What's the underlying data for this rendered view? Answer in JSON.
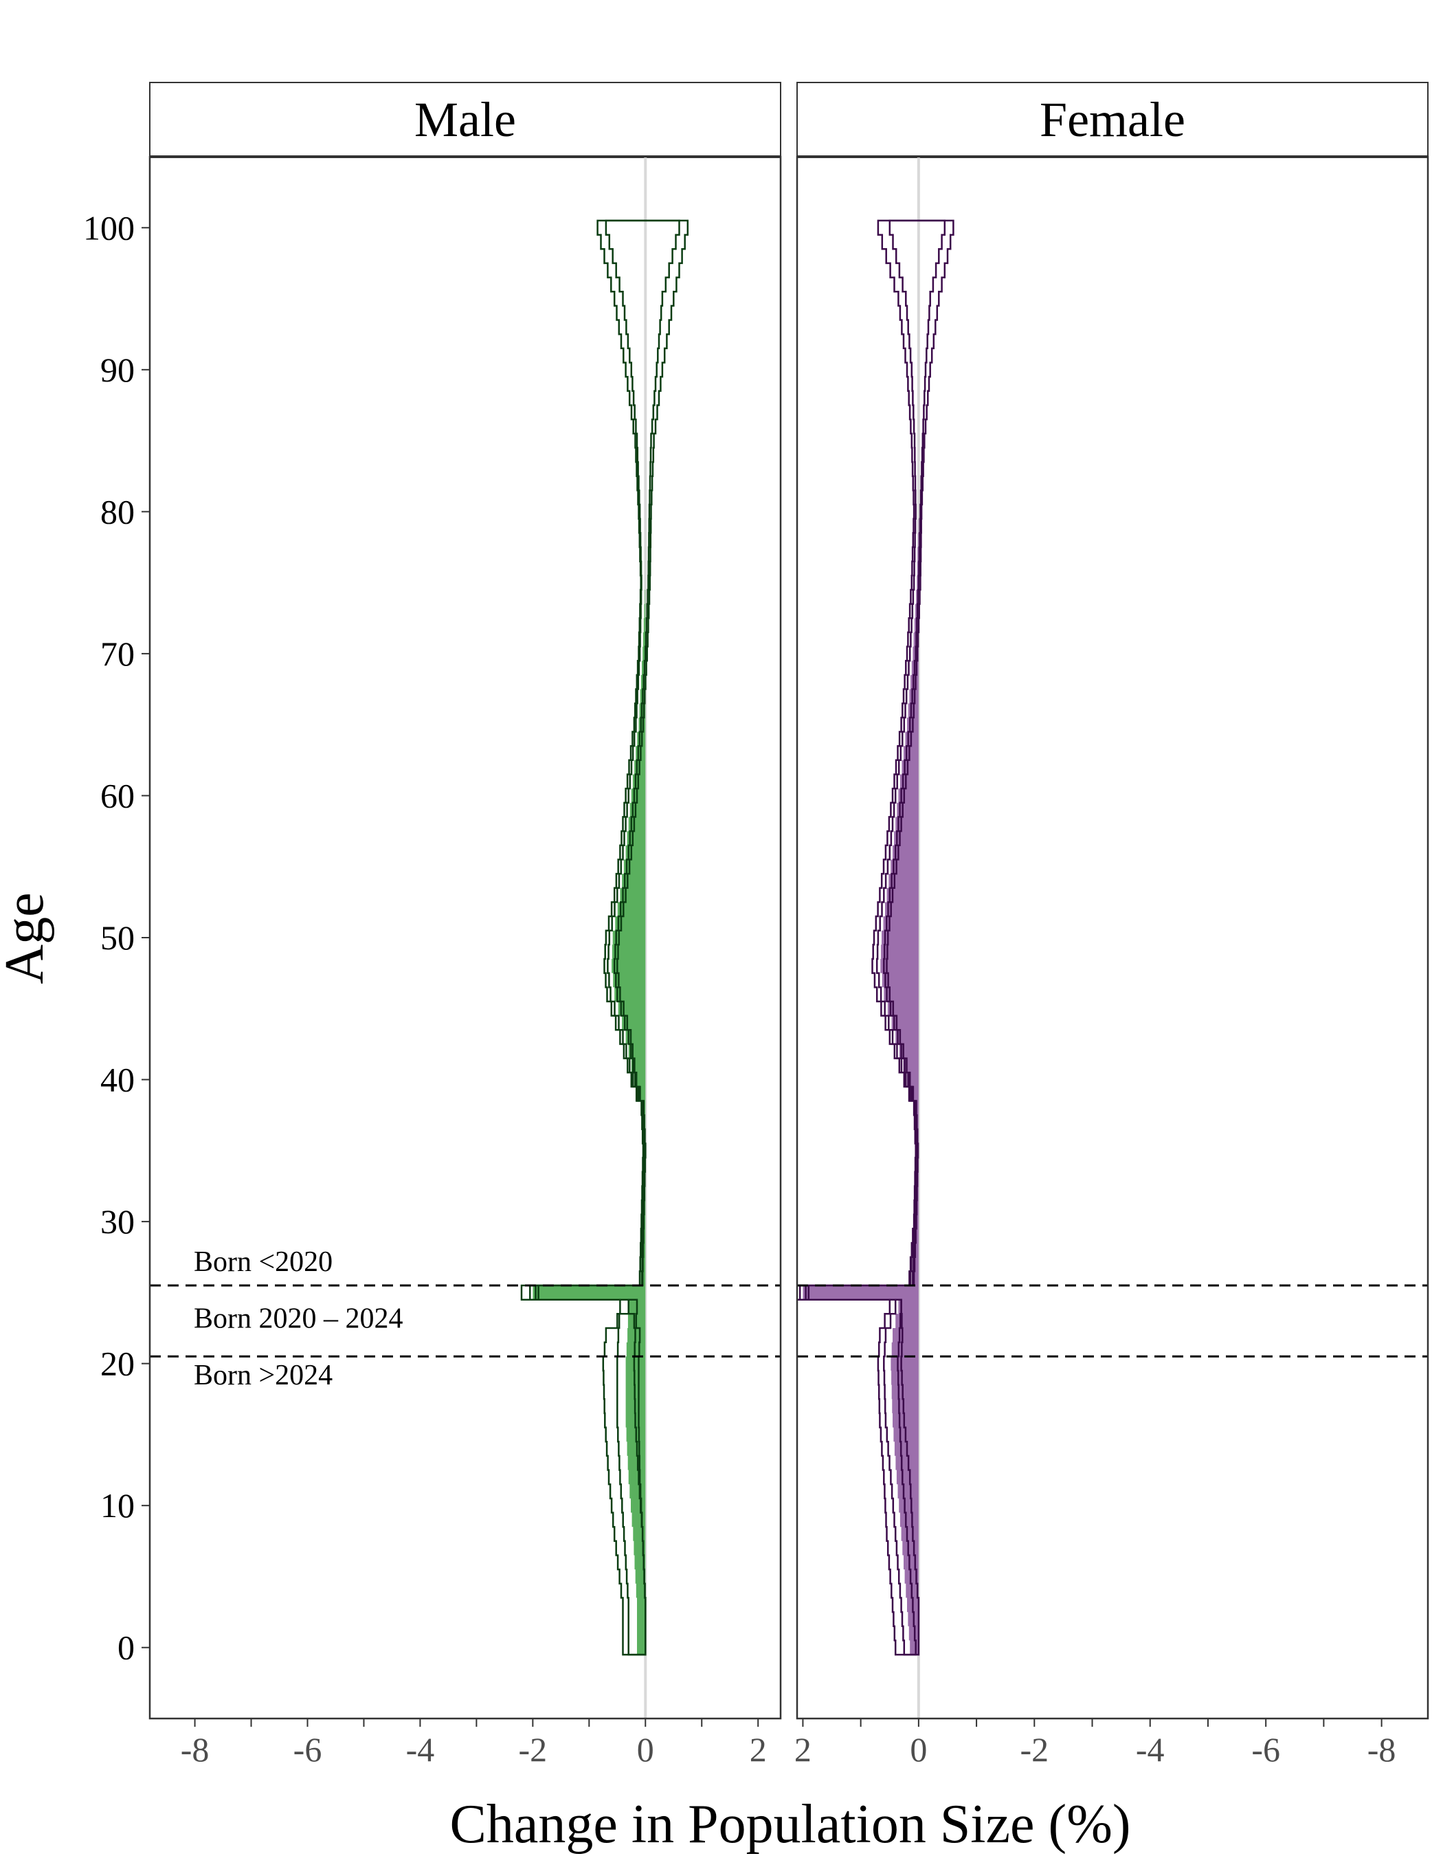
{
  "chart_data": {
    "type": "area",
    "xlabel": "Change in Population Size (%)",
    "ylabel": "Age",
    "ylim": [
      -5,
      105
    ],
    "y_ticks": [
      "0",
      "10",
      "20",
      "30",
      "40",
      "50",
      "60",
      "70",
      "80",
      "90",
      "100"
    ],
    "x_ticks_male": [
      "-8",
      "-6",
      "-4",
      "-2",
      "0",
      "2"
    ],
    "x_ticks_female": [
      "2",
      "0",
      "-2",
      "-4",
      "-6",
      "-8"
    ],
    "grid": false,
    "reference_lines": [
      {
        "age": 25.5,
        "style": "dashed"
      },
      {
        "age": 20.5,
        "style": "dashed"
      }
    ],
    "annotations": [
      "Born <2020",
      "Born 2020 – 2024",
      "Born >2024"
    ],
    "colors": {
      "male_fill": "#5ab05e",
      "male_line": "#0b3d12",
      "female_fill": "#9c6fac",
      "female_line": "#3b0b4a",
      "zero_line": "#d9d9d9"
    },
    "panels": [
      {
        "label": "Male",
        "xlim": [
          -8.8,
          2.4
        ],
        "x_reversed": false,
        "central": [
          [
            0,
            -0.15
          ],
          [
            3,
            -0.15
          ],
          [
            8,
            -0.22
          ],
          [
            12,
            -0.3
          ],
          [
            16,
            -0.35
          ],
          [
            20,
            -0.35
          ],
          [
            22,
            -0.32
          ],
          [
            24,
            -0.3
          ],
          [
            25,
            -2.0
          ],
          [
            26,
            -0.08
          ],
          [
            30,
            -0.05
          ],
          [
            35,
            -0.02
          ],
          [
            38,
            -0.05
          ],
          [
            40,
            -0.2
          ],
          [
            43,
            -0.35
          ],
          [
            46,
            -0.55
          ],
          [
            48,
            -0.6
          ],
          [
            50,
            -0.58
          ],
          [
            53,
            -0.45
          ],
          [
            56,
            -0.35
          ],
          [
            60,
            -0.25
          ],
          [
            65,
            -0.12
          ],
          [
            70,
            -0.05
          ],
          [
            75,
            0
          ],
          [
            80,
            0
          ],
          [
            85,
            0
          ],
          [
            90,
            0
          ],
          [
            95,
            0
          ],
          [
            100,
            0
          ]
        ],
        "inner_lower": [
          [
            0,
            -0.3
          ],
          [
            3,
            -0.3
          ],
          [
            8,
            -0.38
          ],
          [
            12,
            -0.45
          ],
          [
            16,
            -0.5
          ],
          [
            20,
            -0.5
          ],
          [
            22,
            -0.48
          ],
          [
            24,
            -0.45
          ],
          [
            25,
            -2.05
          ],
          [
            26,
            -0.1
          ],
          [
            30,
            -0.06
          ],
          [
            35,
            -0.03
          ],
          [
            38,
            -0.06
          ],
          [
            40,
            -0.22
          ],
          [
            43,
            -0.4
          ],
          [
            46,
            -0.62
          ],
          [
            48,
            -0.67
          ],
          [
            50,
            -0.64
          ],
          [
            53,
            -0.5
          ],
          [
            56,
            -0.4
          ],
          [
            60,
            -0.3
          ],
          [
            65,
            -0.17
          ],
          [
            70,
            -0.1
          ],
          [
            75,
            -0.07
          ],
          [
            80,
            -0.1
          ],
          [
            85,
            -0.15
          ],
          [
            90,
            -0.25
          ],
          [
            95,
            -0.4
          ],
          [
            100,
            -0.7
          ]
        ],
        "inner_upper": [
          [
            0,
            0.0
          ],
          [
            3,
            0.0
          ],
          [
            8,
            -0.05
          ],
          [
            12,
            -0.12
          ],
          [
            16,
            -0.18
          ],
          [
            20,
            -0.2
          ],
          [
            22,
            -0.18
          ],
          [
            24,
            -0.15
          ],
          [
            25,
            -1.95
          ],
          [
            26,
            -0.06
          ],
          [
            30,
            -0.04
          ],
          [
            35,
            -0.01
          ],
          [
            38,
            -0.04
          ],
          [
            40,
            -0.18
          ],
          [
            43,
            -0.3
          ],
          [
            46,
            -0.5
          ],
          [
            48,
            -0.55
          ],
          [
            50,
            -0.52
          ],
          [
            53,
            -0.4
          ],
          [
            56,
            -0.3
          ],
          [
            60,
            -0.2
          ],
          [
            65,
            -0.08
          ],
          [
            70,
            0
          ],
          [
            75,
            0.05
          ],
          [
            80,
            0.07
          ],
          [
            85,
            0.1
          ],
          [
            90,
            0.2
          ],
          [
            95,
            0.3
          ],
          [
            100,
            0.6
          ]
        ],
        "outer_lower": [
          [
            0,
            -0.4
          ],
          [
            3,
            -0.4
          ],
          [
            8,
            -0.55
          ],
          [
            12,
            -0.65
          ],
          [
            16,
            -0.72
          ],
          [
            20,
            -0.75
          ],
          [
            22,
            -0.7
          ],
          [
            24,
            -0.3
          ],
          [
            25,
            -2.2
          ],
          [
            26,
            -0.1
          ],
          [
            30,
            -0.07
          ],
          [
            35,
            -0.04
          ],
          [
            38,
            -0.07
          ],
          [
            40,
            -0.25
          ],
          [
            43,
            -0.45
          ],
          [
            46,
            -0.68
          ],
          [
            48,
            -0.73
          ],
          [
            50,
            -0.7
          ],
          [
            53,
            -0.55
          ],
          [
            56,
            -0.45
          ],
          [
            60,
            -0.35
          ],
          [
            65,
            -0.2
          ],
          [
            70,
            -0.12
          ],
          [
            75,
            -0.08
          ],
          [
            80,
            -0.12
          ],
          [
            85,
            -0.18
          ],
          [
            90,
            -0.35
          ],
          [
            95,
            -0.55
          ],
          [
            100,
            -0.85
          ]
        ],
        "outer_upper": [
          [
            0,
            0.0
          ],
          [
            3,
            0.0
          ],
          [
            8,
            -0.05
          ],
          [
            12,
            -0.1
          ],
          [
            16,
            -0.12
          ],
          [
            20,
            -0.12
          ],
          [
            22,
            -0.1
          ],
          [
            24,
            -0.3
          ],
          [
            25,
            -1.9
          ],
          [
            26,
            -0.05
          ],
          [
            30,
            -0.03
          ],
          [
            35,
            0.0
          ],
          [
            38,
            -0.03
          ],
          [
            40,
            -0.16
          ],
          [
            43,
            -0.26
          ],
          [
            46,
            -0.45
          ],
          [
            48,
            -0.5
          ],
          [
            50,
            -0.47
          ],
          [
            53,
            -0.35
          ],
          [
            56,
            -0.25
          ],
          [
            60,
            -0.15
          ],
          [
            65,
            -0.04
          ],
          [
            70,
            0.03
          ],
          [
            75,
            0.08
          ],
          [
            80,
            0.1
          ],
          [
            85,
            0.15
          ],
          [
            90,
            0.3
          ],
          [
            95,
            0.5
          ],
          [
            100,
            0.75
          ]
        ]
      },
      {
        "label": "Female",
        "xlim": [
          2.1,
          -8.8
        ],
        "x_reversed": true,
        "central": [
          [
            0,
            0.15
          ],
          [
            3,
            0.2
          ],
          [
            8,
            0.3
          ],
          [
            12,
            0.38
          ],
          [
            16,
            0.45
          ],
          [
            20,
            0.48
          ],
          [
            22,
            0.45
          ],
          [
            24,
            0.35
          ],
          [
            25,
            2.0
          ],
          [
            26,
            0.12
          ],
          [
            30,
            0.06
          ],
          [
            35,
            0.03
          ],
          [
            38,
            0.06
          ],
          [
            40,
            0.2
          ],
          [
            43,
            0.4
          ],
          [
            46,
            0.6
          ],
          [
            48,
            0.66
          ],
          [
            50,
            0.64
          ],
          [
            53,
            0.55
          ],
          [
            56,
            0.45
          ],
          [
            60,
            0.35
          ],
          [
            65,
            0.2
          ],
          [
            70,
            0.1
          ],
          [
            75,
            0.03
          ],
          [
            80,
            0
          ],
          [
            85,
            0
          ],
          [
            90,
            0
          ],
          [
            95,
            0
          ],
          [
            100,
            0
          ]
        ],
        "inner_lower": [
          [
            0,
            0.05
          ],
          [
            3,
            0.1
          ],
          [
            8,
            0.2
          ],
          [
            12,
            0.28
          ],
          [
            16,
            0.33
          ],
          [
            20,
            0.36
          ],
          [
            22,
            0.33
          ],
          [
            24,
            0.3
          ],
          [
            25,
            1.95
          ],
          [
            26,
            0.1
          ],
          [
            30,
            0.05
          ],
          [
            35,
            0.02
          ],
          [
            38,
            0.05
          ],
          [
            40,
            0.18
          ],
          [
            43,
            0.36
          ],
          [
            46,
            0.55
          ],
          [
            48,
            0.6
          ],
          [
            50,
            0.58
          ],
          [
            53,
            0.5
          ],
          [
            56,
            0.4
          ],
          [
            60,
            0.3
          ],
          [
            65,
            0.15
          ],
          [
            70,
            0.05
          ],
          [
            75,
            0
          ],
          [
            80,
            -0.03
          ],
          [
            85,
            -0.07
          ],
          [
            90,
            -0.12
          ],
          [
            95,
            -0.2
          ],
          [
            100,
            -0.45
          ]
        ],
        "inner_upper": [
          [
            0,
            0.25
          ],
          [
            3,
            0.3
          ],
          [
            8,
            0.4
          ],
          [
            12,
            0.48
          ],
          [
            16,
            0.57
          ],
          [
            20,
            0.6
          ],
          [
            22,
            0.57
          ],
          [
            24,
            0.4
          ],
          [
            25,
            2.05
          ],
          [
            26,
            0.14
          ],
          [
            30,
            0.07
          ],
          [
            35,
            0.04
          ],
          [
            38,
            0.07
          ],
          [
            40,
            0.22
          ],
          [
            43,
            0.45
          ],
          [
            46,
            0.65
          ],
          [
            48,
            0.72
          ],
          [
            50,
            0.7
          ],
          [
            53,
            0.6
          ],
          [
            56,
            0.5
          ],
          [
            60,
            0.4
          ],
          [
            65,
            0.25
          ],
          [
            70,
            0.15
          ],
          [
            75,
            0.08
          ],
          [
            80,
            0.05
          ],
          [
            85,
            0.07
          ],
          [
            90,
            0.12
          ],
          [
            95,
            0.22
          ],
          [
            100,
            0.5
          ]
        ],
        "outer_lower": [
          [
            0,
            0.0
          ],
          [
            3,
            0.0
          ],
          [
            8,
            0.1
          ],
          [
            12,
            0.15
          ],
          [
            16,
            0.25
          ],
          [
            20,
            0.3
          ],
          [
            22,
            0.28
          ],
          [
            24,
            0.3
          ],
          [
            25,
            1.9
          ],
          [
            26,
            0.08
          ],
          [
            30,
            0.04
          ],
          [
            35,
            0.01
          ],
          [
            38,
            0.04
          ],
          [
            40,
            0.15
          ],
          [
            43,
            0.32
          ],
          [
            46,
            0.5
          ],
          [
            48,
            0.55
          ],
          [
            50,
            0.53
          ],
          [
            53,
            0.45
          ],
          [
            56,
            0.35
          ],
          [
            60,
            0.25
          ],
          [
            65,
            0.1
          ],
          [
            70,
            0.02
          ],
          [
            75,
            -0.03
          ],
          [
            80,
            -0.05
          ],
          [
            85,
            -0.1
          ],
          [
            90,
            -0.2
          ],
          [
            95,
            -0.35
          ],
          [
            100,
            -0.6
          ]
        ],
        "outer_upper": [
          [
            0,
            0.4
          ],
          [
            3,
            0.45
          ],
          [
            8,
            0.55
          ],
          [
            12,
            0.6
          ],
          [
            16,
            0.67
          ],
          [
            20,
            0.7
          ],
          [
            22,
            0.67
          ],
          [
            24,
            0.5
          ],
          [
            25,
            2.2
          ],
          [
            26,
            0.16
          ],
          [
            30,
            0.08
          ],
          [
            35,
            0.05
          ],
          [
            38,
            0.08
          ],
          [
            40,
            0.25
          ],
          [
            43,
            0.5
          ],
          [
            46,
            0.72
          ],
          [
            48,
            0.8
          ],
          [
            50,
            0.77
          ],
          [
            53,
            0.67
          ],
          [
            56,
            0.57
          ],
          [
            60,
            0.45
          ],
          [
            65,
            0.3
          ],
          [
            70,
            0.2
          ],
          [
            75,
            0.12
          ],
          [
            80,
            0.08
          ],
          [
            85,
            0.12
          ],
          [
            90,
            0.2
          ],
          [
            95,
            0.35
          ],
          [
            100,
            0.7
          ]
        ]
      }
    ]
  }
}
